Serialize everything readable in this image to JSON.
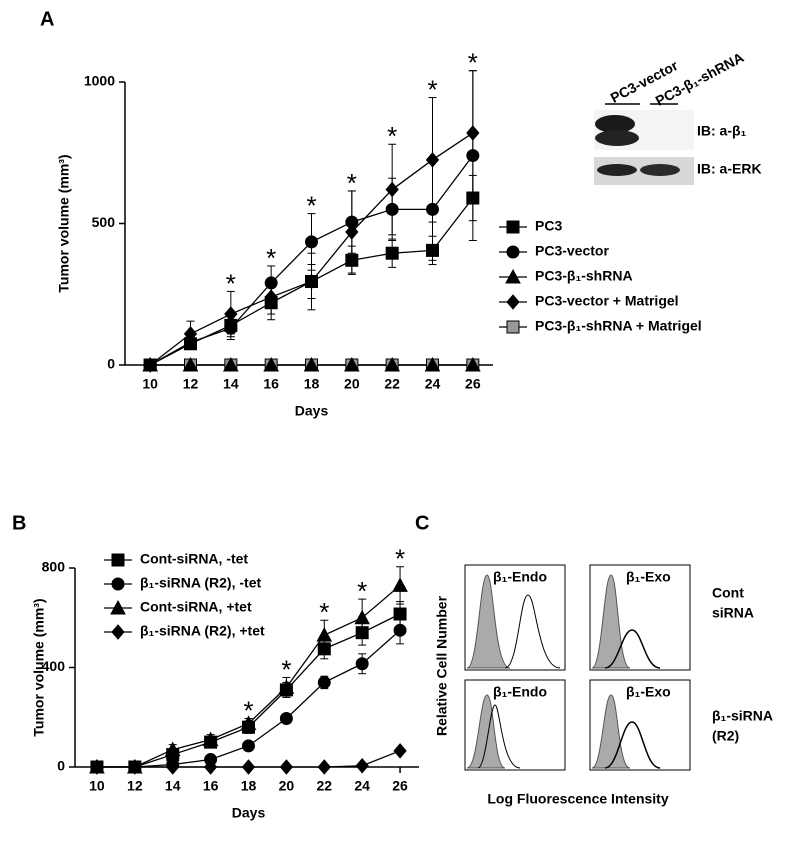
{
  "panel_labels": [
    "A",
    "B",
    "C"
  ],
  "chart_data": [
    {
      "type": "line",
      "x_label": "Days",
      "y_label": "Tumor volume (mm³)",
      "x": [
        10,
        12,
        14,
        16,
        18,
        20,
        22,
        24,
        26
      ],
      "xlim": [
        9,
        27
      ],
      "xticks": [
        10,
        12,
        14,
        16,
        18,
        20,
        22,
        24,
        26
      ],
      "ylim": [
        0,
        1000
      ],
      "yticks": [
        0,
        500,
        1000
      ],
      "grid": false,
      "legend": "right",
      "annotation_text": "*",
      "annotation_x": [
        14,
        16,
        18,
        20,
        22,
        24,
        26
      ],
      "series": [
        {
          "name": "PC3",
          "marker": "square",
          "color": "#000000",
          "fill": "#000000",
          "values": [
            0,
            75,
            140,
            220,
            295,
            370,
            395,
            405,
            590
          ],
          "errors": [
            0,
            15,
            30,
            60,
            100,
            50,
            50,
            50,
            80
          ]
        },
        {
          "name": "PC3-vector",
          "marker": "circle",
          "color": "#000000",
          "fill": "#000000",
          "values": [
            0,
            80,
            130,
            290,
            435,
            505,
            550,
            550,
            740
          ],
          "errors": [
            0,
            20,
            40,
            60,
            100,
            110,
            110,
            180,
            300
          ]
        },
        {
          "name": "PC3-β₁-shRNA",
          "marker": "triangle",
          "color": "#000000",
          "fill": "#000000",
          "values": [
            0,
            0,
            0,
            0,
            0,
            0,
            0,
            0,
            0
          ]
        },
        {
          "name": "PC3-vector + Matrigel",
          "marker": "diamond",
          "color": "#000000",
          "fill": "#000000",
          "values": [
            0,
            110,
            180,
            240,
            295,
            470,
            620,
            725,
            820
          ],
          "errors": [
            0,
            45,
            80,
            60,
            60,
            145,
            160,
            220,
            220
          ]
        },
        {
          "name": "PC3-β₁-shRNA + Matrigel",
          "marker": "square",
          "color": "#000000",
          "fill": "#999999",
          "values": [
            0,
            0,
            0,
            0,
            0,
            0,
            0,
            0,
            0
          ]
        }
      ]
    },
    {
      "type": "line",
      "x_label": "Days",
      "y_label": "Tumor volume (mm³)",
      "x": [
        10,
        12,
        14,
        16,
        18,
        20,
        22,
        24,
        26
      ],
      "xlim": [
        9,
        27
      ],
      "xticks": [
        10,
        12,
        14,
        16,
        18,
        20,
        22,
        24,
        26
      ],
      "ylim": [
        0,
        800
      ],
      "yticks": [
        0,
        400,
        800
      ],
      "grid": false,
      "legend": "upper left",
      "annotation_text": "*",
      "annotation_x": [
        18,
        20,
        22,
        24,
        26
      ],
      "series": [
        {
          "name": "Cont-siRNA, -tet",
          "marker": "square",
          "color": "#000000",
          "fill": "#000000",
          "values": [
            0,
            0,
            50,
            100,
            160,
            310,
            475,
            540,
            615
          ],
          "errors": [
            0,
            0,
            20,
            20,
            25,
            30,
            40,
            50,
            50
          ]
        },
        {
          "name": "β₁-siRNA (R2), -tet",
          "marker": "circle",
          "color": "#000000",
          "fill": "#000000",
          "values": [
            0,
            0,
            10,
            30,
            85,
            195,
            340,
            415,
            550
          ],
          "errors": [
            0,
            0,
            5,
            10,
            15,
            15,
            25,
            40,
            55
          ]
        },
        {
          "name": "Cont-siRNA, +tet",
          "marker": "triangle",
          "color": "#000000",
          "fill": "#000000",
          "values": [
            0,
            0,
            70,
            110,
            175,
            320,
            530,
            600,
            730
          ],
          "errors": [
            0,
            0,
            20,
            20,
            20,
            40,
            60,
            75,
            75
          ]
        },
        {
          "name": "β₁-siRNA (R2), +tet",
          "marker": "diamond",
          "color": "#000000",
          "fill": "#000000",
          "values": [
            0,
            0,
            0,
            0,
            0,
            0,
            0,
            5,
            65
          ]
        }
      ]
    }
  ],
  "blot": {
    "lanes": [
      "PC3-vector",
      "PC3-β₁-shRNA"
    ],
    "rows": [
      "IB: a-β₁",
      "IB: a-ERK"
    ]
  },
  "flow": {
    "y_label": "Relative Cell Number",
    "x_label": "Log Fluorescence Intensity",
    "columns": [
      "β₁-Endo",
      "β₁-Exo"
    ],
    "rows": [
      [
        "Cont",
        "siRNA"
      ],
      [
        "β₁-siRNA",
        "(R2)"
      ]
    ]
  }
}
